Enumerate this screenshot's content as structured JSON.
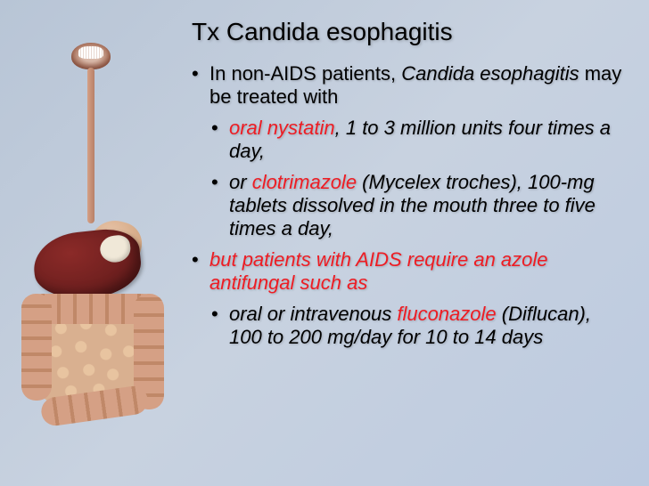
{
  "title": "Tx Candida esophagitis",
  "colors": {
    "background_gradient": [
      "#b8c5d6",
      "#c8d2e0",
      "#bccae0"
    ],
    "text": "#000000",
    "highlight": "#ee1c23",
    "liver": "#8b2a28",
    "intestine": "#d5a085"
  },
  "typography": {
    "title_fontsize": 28,
    "bullet_fontsize": 22,
    "font_family": "Arial"
  },
  "bullets": [
    {
      "level": 1,
      "runs": [
        {
          "t": "In non-AIDS patients, ",
          "italic": false,
          "hl": false
        },
        {
          "t": "Candida esophagitis",
          "italic": true,
          "hl": false
        },
        {
          "t": " may be treated with",
          "italic": false,
          "hl": false
        }
      ]
    },
    {
      "level": 2,
      "runs": [
        {
          "t": "oral nystatin",
          "italic": true,
          "hl": true
        },
        {
          "t": ", 1 to 3 million units four times a day,",
          "italic": true,
          "hl": false
        }
      ]
    },
    {
      "level": 2,
      "runs": [
        {
          "t": "or ",
          "italic": true,
          "hl": false
        },
        {
          "t": "clotrimazole",
          "italic": true,
          "hl": true
        },
        {
          "t": " (Mycelex troches), 100-mg tablets dissolved in the mouth three to five times a day,",
          "italic": true,
          "hl": false
        }
      ]
    },
    {
      "level": 1,
      "runs": [
        {
          "t": "but patients with AIDS require an azole antifungal such as",
          "italic": true,
          "hl": true
        }
      ]
    },
    {
      "level": 2,
      "runs": [
        {
          "t": "oral or intravenous ",
          "italic": true,
          "hl": false
        },
        {
          "t": "fluconazole",
          "italic": true,
          "hl": true
        },
        {
          "t": " (Diflucan), 100 to 200 mg/day for 10 to 14 days",
          "italic": true,
          "hl": false
        }
      ]
    }
  ]
}
